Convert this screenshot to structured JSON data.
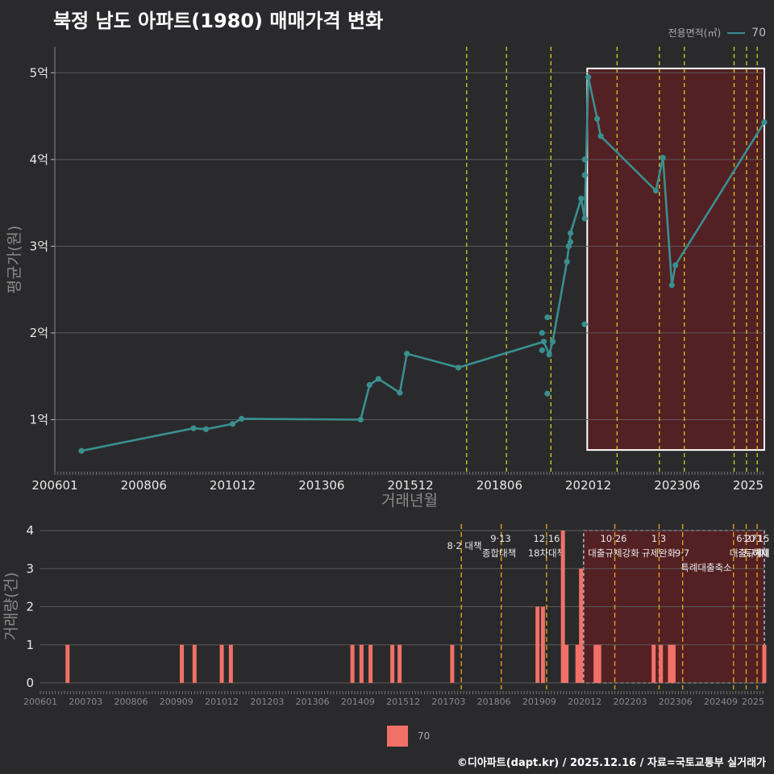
{
  "title": "북정 남도 아파트(1980) 매매가격 변화",
  "legend": {
    "title": "전용면적(㎡)",
    "series_name": "70"
  },
  "footer": "©디아파트(dapt.kr) / 2025.12.16 / 자료=국토교통부 실거래가",
  "colors": {
    "line": "#3a8f8f",
    "bar": "#f07168",
    "policy_line": "#d4cc2a",
    "policy_line_bottom": "#e0a020",
    "highlight_fill": "#5a1f22",
    "grid": "#5a5a5a"
  },
  "chart_data": [
    {
      "type": "line",
      "title": "북정 남도 아파트(1980) 매매가격 변화",
      "xlabel": "거래년월",
      "ylabel": "평균가(원)",
      "x_range": [
        2006.0,
        2025.95
      ],
      "ylim": [
        0.4,
        5.3
      ],
      "x_tick_labels": [
        "200601",
        "200806",
        "201012",
        "201306",
        "201512",
        "201806",
        "202012",
        "202306",
        "2025"
      ],
      "y_tick_labels": [
        "1억",
        "2억",
        "3억",
        "4억",
        "5억"
      ],
      "policy_dates": [
        2017.58,
        2018.7,
        2019.95,
        2021.81,
        2023.0,
        2023.7,
        2025.1,
        2025.45,
        2025.75
      ],
      "highlight_range": [
        2020.97,
        2025.95,
        0.65,
        5.05
      ],
      "series": [
        {
          "name": "70",
          "line_points": [
            [
              2006.75,
              0.64
            ],
            [
              2009.9,
              0.9
            ],
            [
              2010.25,
              0.89
            ],
            [
              2011.0,
              0.95
            ],
            [
              2011.25,
              1.01
            ],
            [
              2014.6,
              1.0
            ],
            [
              2014.85,
              1.4
            ],
            [
              2015.1,
              1.47
            ],
            [
              2015.7,
              1.31
            ],
            [
              2015.9,
              1.76
            ],
            [
              2017.35,
              1.6
            ],
            [
              2019.75,
              1.9
            ],
            [
              2019.9,
              1.75
            ],
            [
              2020.0,
              1.9
            ],
            [
              2020.4,
              2.82
            ],
            [
              2020.5,
              3.15
            ],
            [
              2020.8,
              3.55
            ],
            [
              2020.9,
              3.32
            ],
            [
              2021.0,
              4.95
            ],
            [
              2021.25,
              4.47
            ],
            [
              2021.35,
              4.27
            ],
            [
              2022.9,
              3.64
            ],
            [
              2023.1,
              4.02
            ],
            [
              2023.35,
              2.55
            ],
            [
              2023.45,
              2.78
            ],
            [
              2025.95,
              4.43
            ]
          ],
          "extra_points": [
            [
              2019.7,
              2.0
            ],
            [
              2019.7,
              1.8
            ],
            [
              2019.85,
              2.18
            ],
            [
              2019.85,
              1.3
            ],
            [
              2020.45,
              3.0
            ],
            [
              2020.5,
              3.05
            ],
            [
              2020.9,
              4.0
            ],
            [
              2020.9,
              3.82
            ],
            [
              2020.9,
              2.1
            ]
          ]
        }
      ]
    },
    {
      "type": "bar",
      "xlabel": "",
      "ylabel": "거래량(건)",
      "x_range": [
        2006.0,
        2025.95
      ],
      "ylim": [
        0,
        4
      ],
      "y_tick_labels": [
        "0",
        "1",
        "2",
        "3",
        "4"
      ],
      "x_tick_labels": [
        "200601",
        "200703",
        "200806",
        "200909",
        "201012",
        "201203",
        "201306",
        "201409",
        "201512",
        "201703",
        "201806",
        "201909",
        "202012",
        "202203",
        "202306",
        "202409",
        "2025"
      ],
      "policy_dates": [
        2017.6,
        2018.7,
        2019.95,
        2021.83,
        2023.05,
        2023.7,
        2025.1,
        2025.45,
        2025.75
      ],
      "policy_annotations": [
        {
          "date": "8·2 대책",
          "line2": ""
        },
        {
          "date": "9·13",
          "line2": "종합대책"
        },
        {
          "date": "12·16",
          "line2": "18차대책"
        },
        {
          "date": "10·26",
          "line2": "대출규제강화"
        },
        {
          "date": "1·3",
          "line2": "규제완화"
        },
        {
          "date": "9·7",
          "line2": "특례대출축소"
        },
        {
          "date": "6·27",
          "line2": "대출규제"
        },
        {
          "date": "10·15",
          "line2": "토허제"
        },
        {
          "date": "1·",
          "line2": "해제"
        }
      ],
      "highlight_range": [
        2020.97,
        2025.95
      ],
      "series": [
        {
          "name": "70",
          "bars": [
            [
              2006.75,
              1
            ],
            [
              2009.9,
              1
            ],
            [
              2010.25,
              1
            ],
            [
              2011.0,
              1
            ],
            [
              2011.25,
              1
            ],
            [
              2014.6,
              1
            ],
            [
              2014.85,
              1
            ],
            [
              2015.1,
              1
            ],
            [
              2015.7,
              1
            ],
            [
              2015.9,
              1
            ],
            [
              2017.35,
              1
            ],
            [
              2019.7,
              2
            ],
            [
              2019.85,
              2
            ],
            [
              2020.4,
              4
            ],
            [
              2020.5,
              1
            ],
            [
              2020.8,
              1
            ],
            [
              2020.9,
              3
            ],
            [
              2021.3,
              1
            ],
            [
              2021.4,
              1
            ],
            [
              2022.9,
              1
            ],
            [
              2023.1,
              1
            ],
            [
              2023.35,
              1
            ],
            [
              2023.45,
              1
            ],
            [
              2025.95,
              1
            ]
          ]
        }
      ]
    }
  ]
}
